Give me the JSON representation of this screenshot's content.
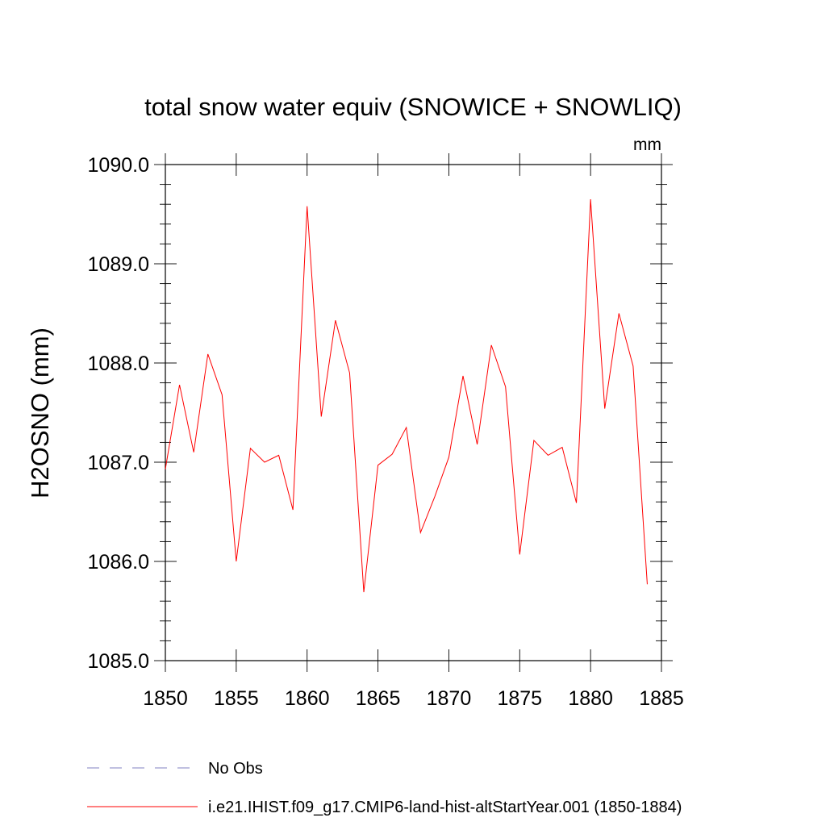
{
  "chart_data": {
    "type": "line",
    "title": "total snow water equiv (SNOWICE + SNOWLIQ)",
    "units_label": "mm",
    "ylabel": "H2OSNO  (mm)",
    "xlabel": "",
    "xlim": [
      1850,
      1885
    ],
    "ylim": [
      1085.0,
      1090.0
    ],
    "x_ticks": [
      1850,
      1855,
      1860,
      1865,
      1870,
      1875,
      1880,
      1885
    ],
    "y_ticks": [
      "1085.0",
      "1086.0",
      "1087.0",
      "1088.0",
      "1089.0",
      "1090.0"
    ],
    "grid": false,
    "legend_placement": "bottom",
    "series": [
      {
        "name": "i.e21.IHIST.f09_g17.CMIP6-land-hist-altStartYear.001 (1850-1884)",
        "color": "#ff0000",
        "style": "solid",
        "x": [
          1850,
          1851,
          1852,
          1853,
          1854,
          1855,
          1856,
          1857,
          1858,
          1859,
          1860,
          1861,
          1862,
          1863,
          1864,
          1865,
          1866,
          1867,
          1868,
          1869,
          1870,
          1871,
          1872,
          1873,
          1874,
          1875,
          1876,
          1877,
          1878,
          1879,
          1880,
          1881,
          1882,
          1883,
          1884
        ],
        "y": [
          1086.93,
          1087.78,
          1087.1,
          1088.09,
          1087.68,
          1086.0,
          1087.14,
          1087.0,
          1087.07,
          1086.52,
          1089.58,
          1087.46,
          1088.43,
          1087.9,
          1085.69,
          1086.97,
          1087.08,
          1087.35,
          1086.29,
          1086.65,
          1087.05,
          1087.87,
          1087.18,
          1088.18,
          1087.76,
          1086.07,
          1087.22,
          1087.07,
          1087.15,
          1086.59,
          1089.65,
          1087.54,
          1088.5,
          1087.97,
          1085.77
        ]
      }
    ],
    "legend": [
      {
        "label": "No Obs",
        "color": "#8080c0",
        "style": "dashed"
      },
      {
        "label": "i.e21.IHIST.f09_g17.CMIP6-land-hist-altStartYear.001 (1850-1884)",
        "color": "#ff0000",
        "style": "solid"
      }
    ]
  }
}
